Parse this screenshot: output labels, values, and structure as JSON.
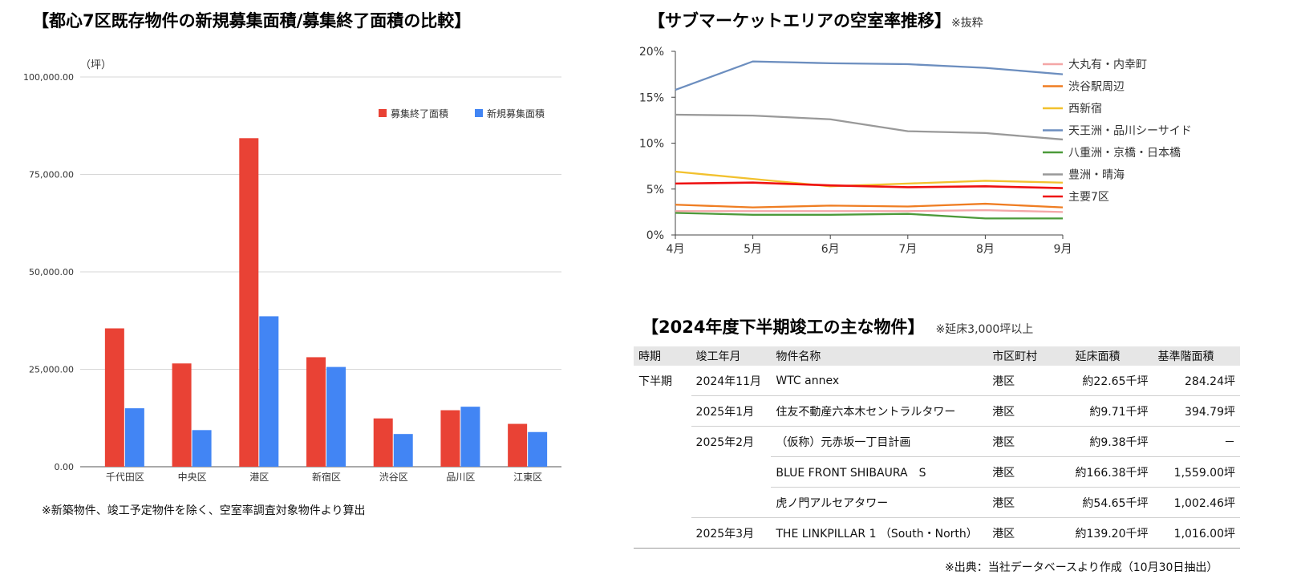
{
  "left_chart": {
    "title": "【都心7区既存物件の新規募集面積/募集終了面積の比較】",
    "unit": "（坪）",
    "note": "※新築物件、竣工予定物件を除く、空室率調査対象物件より算出"
  },
  "right_top": {
    "title": "【サブマーケットエリアの空室率推移】",
    "note": "※抜粋"
  },
  "table": {
    "title": "【2024年度下半期竣工の主な物件】",
    "note": "※延床3,000坪以上",
    "headers": [
      "時期",
      "竣工年月",
      "物件名称",
      "市区町村",
      "延床面積",
      "基準階面積"
    ],
    "rows": [
      [
        "下半期",
        "2024年11月",
        "WTC annex",
        "港区",
        "約22.65千坪",
        "284.24坪"
      ],
      [
        "",
        "2025年1月",
        "住友不動産六本木セントラルタワー",
        "港区",
        "約9.71千坪",
        "394.79坪"
      ],
      [
        "",
        "2025年2月",
        "（仮称）元赤坂一丁目計画",
        "港区",
        "約9.38千坪",
        "－"
      ],
      [
        "",
        "",
        "BLUE FRONT SHIBAURA　S",
        "港区",
        "約166.38千坪",
        "1,559.00坪"
      ],
      [
        "",
        "",
        "虎ノ門アルセアタワー",
        "港区",
        "約54.65千坪",
        "1,002.46坪"
      ],
      [
        "",
        "2025年3月",
        "THE LINKPILLAR 1 （South・North）",
        "港区",
        "約139.20千坪",
        "1,016.00坪"
      ]
    ],
    "source": "※出典：当社データベースより作成（10月30日抽出）"
  },
  "chart_data": [
    {
      "type": "bar",
      "categories": [
        "千代田区",
        "中央区",
        "港区",
        "新宿区",
        "渋谷区",
        "品川区",
        "江東区"
      ],
      "series": [
        {
          "name": "募集終了面積",
          "color": "#e94235",
          "values": [
            35500,
            26500,
            84300,
            28100,
            12400,
            14500,
            11000
          ]
        },
        {
          "name": "新規募集面積",
          "color": "#4285f4",
          "values": [
            15000,
            9400,
            38600,
            25600,
            8400,
            15400,
            8900
          ]
        }
      ],
      "ylim": [
        0,
        100000
      ],
      "yticks": [
        "0.00",
        "25,000.00",
        "50,000.00",
        "75,000.00",
        "100,000.00"
      ],
      "legend_position": "top-right",
      "grid": true
    },
    {
      "type": "line",
      "x": [
        "4月",
        "5月",
        "6月",
        "7月",
        "8月",
        "9月"
      ],
      "series": [
        {
          "name": "大丸有・内幸町",
          "color": "#f4a6a6",
          "values": [
            2.6,
            2.6,
            2.6,
            2.6,
            2.7,
            2.5
          ]
        },
        {
          "name": "渋谷駅周辺",
          "color": "#ef7d22",
          "values": [
            3.3,
            3.0,
            3.2,
            3.1,
            3.4,
            3.0
          ]
        },
        {
          "name": "西新宿",
          "color": "#f2c12e",
          "values": [
            6.9,
            6.1,
            5.3,
            5.6,
            5.9,
            5.7
          ]
        },
        {
          "name": "天王洲・品川シーサイド",
          "color": "#6c8ebf",
          "values": [
            15.8,
            18.9,
            18.7,
            18.6,
            18.2,
            17.5
          ]
        },
        {
          "name": "八重洲・京橋・日本橋",
          "color": "#4c9a3a",
          "values": [
            2.4,
            2.2,
            2.2,
            2.3,
            1.8,
            1.8
          ]
        },
        {
          "name": "豊洲・晴海",
          "color": "#999999",
          "values": [
            13.1,
            13.0,
            12.6,
            11.3,
            11.1,
            10.4
          ]
        },
        {
          "name": "主要7区",
          "color": "#ee1111",
          "values": [
            5.6,
            5.7,
            5.4,
            5.2,
            5.3,
            5.1
          ]
        }
      ],
      "ylim": [
        0,
        20
      ],
      "yticks": [
        "0%",
        "5%",
        "10%",
        "15%",
        "20%"
      ],
      "legend_position": "right",
      "grid": false
    }
  ]
}
